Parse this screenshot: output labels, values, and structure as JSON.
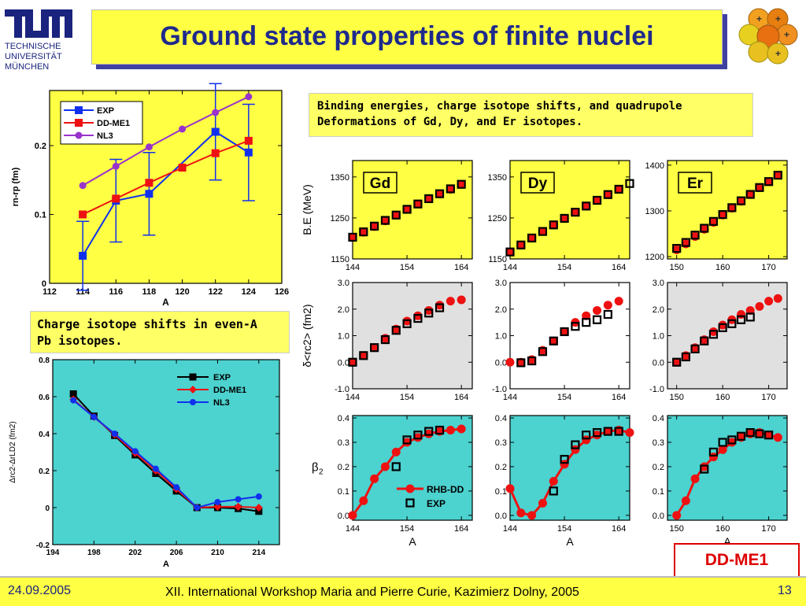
{
  "header": {
    "title": "Ground state properties of finite nuclei",
    "logo_text": [
      "TUM",
      "TECHNISCHE",
      "UNIVERSITÄT",
      "MÜNCHEN"
    ]
  },
  "notes": {
    "binding": [
      "Binding energies, charge isotope shifts, and quadrupole",
      "Deformations of Gd, Dy, and Er isotopes."
    ],
    "pb": [
      "Charge isotope shifts in even-A",
      "Pb isotopes."
    ]
  },
  "ddme1_label": "DD-ME1",
  "footer": {
    "date": "24.09.2005",
    "event": "XII. International Workshop Maria and Pierre Curie, Kazimierz Dolny, 2005",
    "page": "13"
  },
  "colors": {
    "title": "#1f2a8c",
    "yellow": "#ffff44",
    "cyan": "#4cd2cf",
    "gray": "#e0e0e0",
    "red": "#ee1111",
    "blue": "#1030ee",
    "purple": "#9933cc"
  },
  "chart_data": [
    {
      "id": "skin",
      "type": "line",
      "xlabel": "A",
      "ylabel": "rn-rp (fm)",
      "xlim": [
        112,
        126
      ],
      "ylim": [
        0,
        0.28
      ],
      "xticks": [
        112,
        114,
        116,
        118,
        120,
        122,
        124,
        126
      ],
      "yticks": [
        0,
        0.1,
        0.2
      ],
      "legend": "top-left",
      "series": [
        {
          "name": "EXP",
          "color": "#1030ee",
          "marker": "square",
          "x": [
            114,
            116,
            118,
            122,
            124
          ],
          "y": [
            0.04,
            0.12,
            0.13,
            0.22,
            0.19
          ],
          "err": [
            0.05,
            0.06,
            0.06,
            0.07,
            0.07
          ]
        },
        {
          "name": "DD-ME1",
          "color": "#ee1111",
          "marker": "square",
          "x": [
            114,
            116,
            118,
            120,
            122,
            124
          ],
          "y": [
            0.1,
            0.123,
            0.146,
            0.168,
            0.189,
            0.207
          ]
        },
        {
          "name": "NL3",
          "color": "#9933cc",
          "marker": "circle",
          "x": [
            114,
            116,
            118,
            120,
            122,
            124
          ],
          "y": [
            0.142,
            0.17,
            0.198,
            0.224,
            0.248,
            0.271
          ]
        }
      ]
    },
    {
      "id": "pb",
      "type": "line",
      "xlabel": "A",
      "ylabel": "Δrc2-ΔrLD2 (fm2)",
      "xlim": [
        194,
        216
      ],
      "ylim": [
        -0.2,
        0.8
      ],
      "xticks": [
        194,
        198,
        202,
        206,
        210,
        214
      ],
      "yticks": [
        -0.2,
        0,
        0.2,
        0.4,
        0.6,
        0.8
      ],
      "legend": "top-right",
      "series": [
        {
          "name": "EXP",
          "color": "#000000",
          "marker": "square",
          "x": [
            196,
            198,
            200,
            202,
            204,
            206,
            208,
            210,
            212,
            214
          ],
          "y": [
            0.615,
            0.495,
            0.39,
            0.285,
            0.185,
            0.09,
            0.0,
            0.0,
            -0.005,
            -0.02
          ]
        },
        {
          "name": "DD-ME1",
          "color": "#ee1111",
          "marker": "diamond",
          "x": [
            196,
            198,
            200,
            202,
            204,
            206,
            208,
            210,
            212,
            214
          ],
          "y": [
            0.585,
            0.49,
            0.395,
            0.295,
            0.2,
            0.1,
            0.0,
            0.005,
            0.005,
            0.0
          ]
        },
        {
          "name": "NL3",
          "color": "#1030ee",
          "marker": "circle",
          "x": [
            196,
            198,
            200,
            202,
            204,
            206,
            208,
            210,
            212,
            214
          ],
          "y": [
            0.58,
            0.49,
            0.4,
            0.305,
            0.21,
            0.11,
            0.0,
            0.03,
            0.045,
            0.06
          ]
        }
      ]
    },
    {
      "id": "be-gd",
      "type": "scatter",
      "label": "Gd",
      "ylabel": "B.E  (MeV)",
      "xlim": [
        144,
        166
      ],
      "ylim": [
        1150,
        1390
      ],
      "xticks": [
        144,
        154,
        164
      ],
      "yticks": [
        1150,
        1250,
        1350
      ],
      "series": [
        {
          "name": "RHB-DD",
          "x": [
            144,
            146,
            148,
            150,
            152,
            154,
            156,
            158,
            160,
            162,
            164
          ],
          "y": [
            1202,
            1215,
            1229,
            1243,
            1257,
            1271,
            1284,
            1297,
            1309,
            1320,
            1332
          ]
        },
        {
          "name": "EXP",
          "x": [
            144,
            146,
            148,
            150,
            152,
            154,
            156,
            158,
            160,
            162,
            164
          ],
          "y": [
            1203,
            1216,
            1230,
            1244,
            1257,
            1271,
            1284,
            1297,
            1309,
            1321,
            1332
          ]
        }
      ]
    },
    {
      "id": "be-dy",
      "type": "scatter",
      "label": "Dy",
      "xlim": [
        144,
        166
      ],
      "ylim": [
        1150,
        1390
      ],
      "xticks": [
        144,
        154,
        164
      ],
      "yticks": [
        1150,
        1250,
        1350
      ],
      "series": [
        {
          "name": "RHB-DD",
          "x": [
            144,
            146,
            148,
            150,
            152,
            154,
            156,
            158,
            160,
            162,
            164
          ],
          "y": [
            1167,
            1184,
            1201,
            1217,
            1233,
            1249,
            1264,
            1279,
            1293,
            1307,
            1320
          ]
        },
        {
          "name": "EXP",
          "x": [
            144,
            146,
            148,
            150,
            152,
            154,
            156,
            158,
            160,
            162,
            164,
            166
          ],
          "y": [
            1167,
            1184,
            1201,
            1217,
            1233,
            1249,
            1264,
            1279,
            1293,
            1307,
            1320,
            1334
          ]
        }
      ]
    },
    {
      "id": "be-er",
      "type": "scatter",
      "label": "Er",
      "xlim": [
        148,
        174
      ],
      "ylim": [
        1195,
        1410
      ],
      "xticks": [
        150,
        160,
        170
      ],
      "yticks": [
        1200,
        1300,
        1400
      ],
      "series": [
        {
          "name": "RHB-DD",
          "x": [
            150,
            152,
            154,
            156,
            158,
            160,
            162,
            164,
            166,
            168,
            170,
            172
          ],
          "y": [
            1215,
            1228,
            1244,
            1260,
            1275,
            1291,
            1306,
            1321,
            1336,
            1351,
            1364,
            1378
          ]
        },
        {
          "name": "EXP",
          "x": [
            150,
            152,
            154,
            156,
            158,
            160,
            162,
            164,
            166,
            168,
            170,
            172
          ],
          "y": [
            1218,
            1231,
            1247,
            1262,
            1277,
            1292,
            1307,
            1322,
            1336,
            1351,
            1364,
            1378
          ]
        }
      ]
    },
    {
      "id": "dr-gd",
      "type": "scatter",
      "ylabel": "δ<rc2>  (fm2)",
      "xlim": [
        144,
        166
      ],
      "ylim": [
        -1.0,
        3.0
      ],
      "xticks": [
        144,
        154,
        164
      ],
      "yticks": [
        -1.0,
        0.0,
        1.0,
        2.0,
        3.0
      ],
      "series": [
        {
          "name": "RHB-DD",
          "x": [
            144,
            146,
            148,
            150,
            152,
            154,
            156,
            158,
            160,
            162,
            164
          ],
          "y": [
            0.0,
            0.25,
            0.55,
            0.9,
            1.25,
            1.55,
            1.75,
            1.95,
            2.15,
            2.3,
            2.35
          ]
        },
        {
          "name": "EXP",
          "x": [
            144,
            146,
            148,
            150,
            152,
            154,
            156,
            158,
            160
          ],
          "y": [
            0.0,
            0.25,
            0.55,
            0.85,
            1.2,
            1.45,
            1.65,
            1.85,
            2.05
          ]
        }
      ]
    },
    {
      "id": "dr-dy",
      "type": "scatter",
      "xlim": [
        144,
        166
      ],
      "ylim": [
        -1.0,
        3.0
      ],
      "xticks": [
        144,
        154,
        164
      ],
      "yticks": [
        -1.0,
        0.0,
        1.0,
        2.0,
        3.0
      ],
      "series": [
        {
          "name": "RHB-DD",
          "x": [
            144,
            146,
            148,
            150,
            152,
            154,
            156,
            158,
            160,
            162,
            164
          ],
          "y": [
            0.0,
            0.0,
            0.1,
            0.45,
            0.8,
            1.15,
            1.5,
            1.75,
            1.95,
            2.15,
            2.3
          ]
        },
        {
          "name": "EXP",
          "x": [
            146,
            148,
            150,
            152,
            154,
            156,
            158,
            160,
            162
          ],
          "y": [
            -0.02,
            0.05,
            0.4,
            0.8,
            1.15,
            1.35,
            1.5,
            1.6,
            1.8
          ]
        }
      ]
    },
    {
      "id": "dr-er",
      "type": "scatter",
      "xlim": [
        148,
        174
      ],
      "ylim": [
        -1.0,
        3.0
      ],
      "xticks": [
        150,
        160,
        170
      ],
      "yticks": [
        -1.0,
        0.0,
        1.0,
        2.0,
        3.0
      ],
      "series": [
        {
          "name": "RHB-DD",
          "x": [
            150,
            152,
            154,
            156,
            158,
            160,
            162,
            164,
            166,
            168,
            170,
            172
          ],
          "y": [
            0.0,
            0.25,
            0.55,
            0.85,
            1.15,
            1.4,
            1.6,
            1.8,
            1.95,
            2.1,
            2.3,
            2.4
          ]
        },
        {
          "name": "EXP",
          "x": [
            150,
            152,
            154,
            156,
            158,
            160,
            162,
            164,
            166
          ],
          "y": [
            0.0,
            0.2,
            0.5,
            0.8,
            1.05,
            1.3,
            1.45,
            1.6,
            1.7
          ]
        }
      ]
    },
    {
      "id": "b2-gd",
      "type": "scatter",
      "ylabel": "β2",
      "xlabel": "A",
      "xlim": [
        144,
        166
      ],
      "ylim": [
        -0.02,
        0.41
      ],
      "xticks": [
        144,
        154,
        164
      ],
      "yticks": [
        0.0,
        0.1,
        0.2,
        0.3,
        0.4
      ],
      "legend": "bottom-right",
      "series": [
        {
          "name": "RHB-DD",
          "x": [
            144,
            146,
            148,
            150,
            152,
            154,
            156,
            158,
            160,
            162,
            164
          ],
          "y": [
            0.0,
            0.06,
            0.15,
            0.2,
            0.26,
            0.3,
            0.32,
            0.335,
            0.345,
            0.35,
            0.355
          ]
        },
        {
          "name": "EXP",
          "x": [
            152,
            154,
            156,
            158,
            160
          ],
          "y": [
            0.2,
            0.31,
            0.33,
            0.345,
            0.35
          ]
        }
      ]
    },
    {
      "id": "b2-dy",
      "type": "scatter",
      "xlabel": "A",
      "xlim": [
        144,
        166
      ],
      "ylim": [
        -0.02,
        0.41
      ],
      "xticks": [
        144,
        154,
        164
      ],
      "yticks": [
        0.0,
        0.1,
        0.2,
        0.3,
        0.4
      ],
      "series": [
        {
          "name": "RHB-DD",
          "x": [
            144,
            146,
            148,
            150,
            152,
            154,
            156,
            158,
            160,
            162,
            164,
            166
          ],
          "y": [
            0.11,
            0.01,
            0.0,
            0.05,
            0.14,
            0.21,
            0.27,
            0.31,
            0.33,
            0.345,
            0.35,
            0.34
          ]
        },
        {
          "name": "EXP",
          "x": [
            152,
            154,
            156,
            158,
            160,
            162,
            164
          ],
          "y": [
            0.1,
            0.23,
            0.29,
            0.33,
            0.34,
            0.345,
            0.345
          ]
        }
      ]
    },
    {
      "id": "b2-er",
      "type": "scatter",
      "xlabel": "A",
      "xlim": [
        148,
        174
      ],
      "ylim": [
        -0.02,
        0.41
      ],
      "xticks": [
        150,
        160,
        170
      ],
      "yticks": [
        0.0,
        0.1,
        0.2,
        0.3,
        0.4
      ],
      "series": [
        {
          "name": "RHB-DD",
          "x": [
            150,
            152,
            154,
            156,
            158,
            160,
            162,
            164,
            166,
            168,
            170,
            172
          ],
          "y": [
            0.0,
            0.06,
            0.15,
            0.2,
            0.24,
            0.27,
            0.3,
            0.32,
            0.335,
            0.34,
            0.33,
            0.32
          ]
        },
        {
          "name": "EXP",
          "x": [
            156,
            158,
            160,
            162,
            164,
            166,
            168,
            170
          ],
          "y": [
            0.19,
            0.26,
            0.3,
            0.31,
            0.325,
            0.34,
            0.335,
            0.33
          ]
        }
      ]
    }
  ]
}
